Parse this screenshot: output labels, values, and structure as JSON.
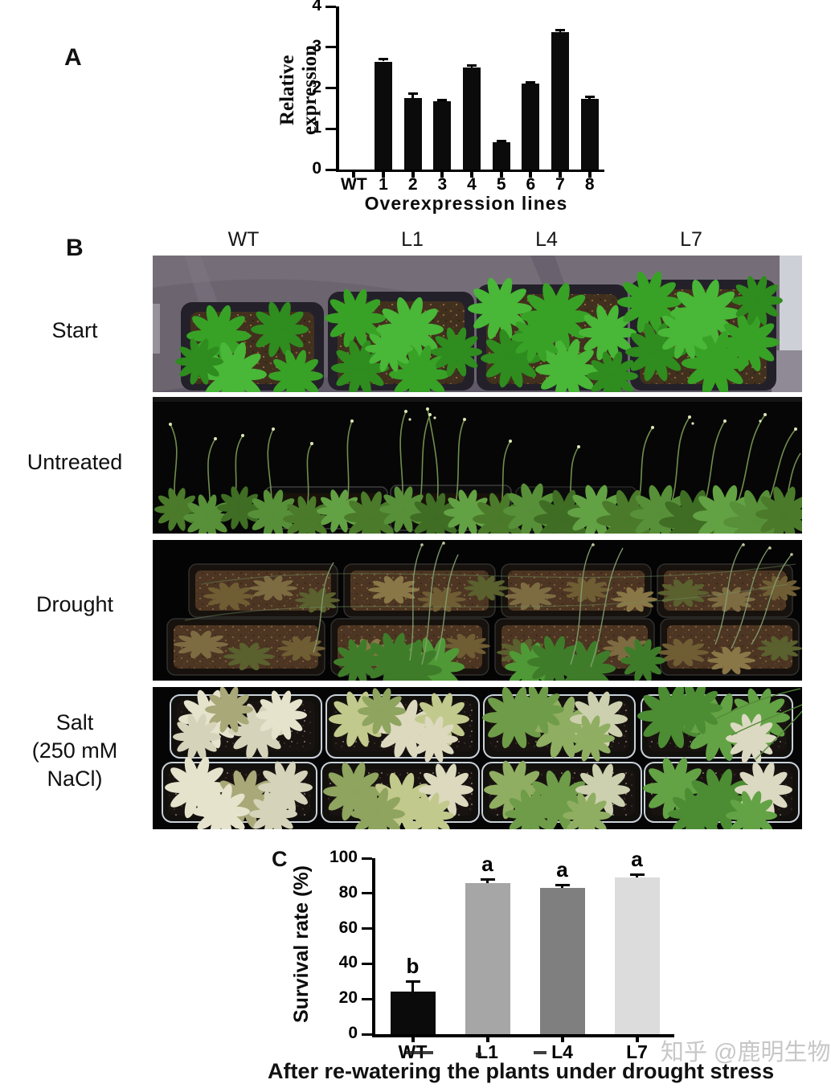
{
  "figure": {
    "panel_a": {
      "label": "A"
    },
    "panel_b": {
      "label": "B",
      "column_labels": [
        "WT",
        "L1",
        "L4",
        "L7"
      ],
      "row_labels": [
        [
          "Start"
        ],
        [
          "Untreated"
        ],
        [
          "Drought"
        ],
        [
          "Salt",
          "(250 mM",
          "NaCl)"
        ]
      ]
    },
    "panel_c": {
      "label": "C"
    },
    "caption": "After re-watering the plants under drought stress",
    "watermark": "知乎 @鹿明生物"
  },
  "chart_data": [
    {
      "type": "bar",
      "title": "",
      "categories": [
        "WT",
        "1",
        "2",
        "3",
        "4",
        "5",
        "6",
        "7",
        "8"
      ],
      "values": [
        0,
        2.65,
        1.75,
        1.68,
        2.5,
        0.68,
        2.1,
        3.37,
        1.73
      ],
      "errors": [
        0,
        0.06,
        0.12,
        0.03,
        0.07,
        0.03,
        0.05,
        0.05,
        0.06
      ],
      "xlabel": "Overexpression lines",
      "ylabel": "Relative expression",
      "ylim": [
        0,
        4
      ],
      "yticks": [
        0,
        1,
        2,
        3,
        4
      ],
      "bar_color": "#0b0b0b",
      "grid": false,
      "legend_position": "none"
    },
    {
      "type": "bar",
      "title": "",
      "categories": [
        "WT",
        "L1",
        "L4",
        "L7"
      ],
      "values": [
        24,
        86,
        83,
        89
      ],
      "errors": [
        6,
        2,
        2,
        2
      ],
      "sig_letters": [
        "b",
        "a",
        "a",
        "a"
      ],
      "bar_colors": [
        "#0b0b0b",
        "#a6a6a6",
        "#7f7f7f",
        "#dcdcdc"
      ],
      "xlabel": "",
      "ylabel": "Survival rate (%)",
      "ylim": [
        0,
        100
      ],
      "yticks": [
        0,
        20,
        40,
        60,
        80,
        100
      ],
      "grid": false,
      "legend_position": "none"
    }
  ]
}
